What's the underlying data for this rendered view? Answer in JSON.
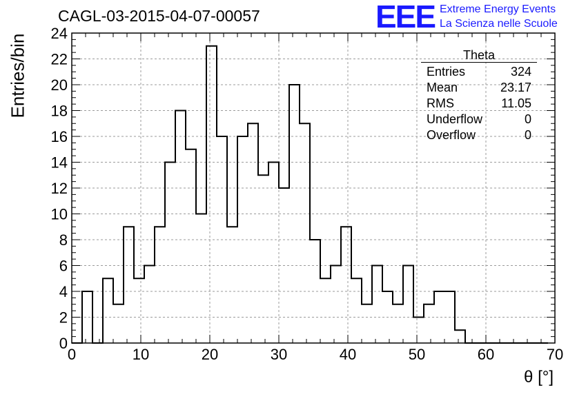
{
  "plot_title": "CAGL-03-2015-04-07-00057",
  "logo": {
    "mark": "EEE",
    "line1": "Extreme Energy Events",
    "line2": "La Scienza nelle Scuole",
    "color": "#1a1aff"
  },
  "stats_box": {
    "title": "Theta",
    "rows": [
      {
        "label": "Entries",
        "value": "324"
      },
      {
        "label": "Mean",
        "value": "23.17"
      },
      {
        "label": "RMS",
        "value": "11.05"
      },
      {
        "label": "Underflow",
        "value": "0"
      },
      {
        "label": "Overflow",
        "value": "0"
      }
    ]
  },
  "chart_data": {
    "type": "bar",
    "style": "step-histogram",
    "title": "CAGL-03-2015-04-07-00057",
    "xlabel": "θ [°]",
    "ylabel": "Entries/bin",
    "xlim": [
      0,
      70
    ],
    "ylim": [
      0,
      24
    ],
    "bin_width": 1.5,
    "x_ticks": [
      0,
      10,
      20,
      30,
      40,
      50,
      60,
      70
    ],
    "y_ticks": [
      0,
      2,
      4,
      6,
      8,
      10,
      12,
      14,
      16,
      18,
      20,
      22,
      24
    ],
    "grid": true,
    "bin_edges": [
      0,
      1.5,
      3,
      4.5,
      6,
      7.5,
      9,
      10.5,
      12,
      13.5,
      15,
      16.5,
      18,
      19.5,
      21,
      22.5,
      24,
      25.5,
      27,
      28.5,
      30,
      31.5,
      33,
      34.5,
      36,
      37.5,
      39,
      40.5,
      42,
      43.5,
      45,
      46.5,
      48,
      49.5,
      51,
      52.5,
      54,
      55.5,
      57,
      58.5,
      60,
      61.5,
      63,
      64.5,
      66,
      67.5,
      69
    ],
    "values": [
      0,
      4,
      0,
      5,
      3,
      9,
      5,
      6,
      9,
      14,
      18,
      15,
      10,
      23,
      16,
      9,
      16,
      17,
      13,
      14,
      12,
      20,
      17,
      8,
      5,
      6,
      9,
      5,
      3,
      6,
      4,
      3,
      6,
      2,
      3,
      4,
      4,
      1,
      0,
      0,
      0,
      0,
      0,
      0,
      0,
      0,
      0
    ],
    "line_color": "#000000"
  }
}
